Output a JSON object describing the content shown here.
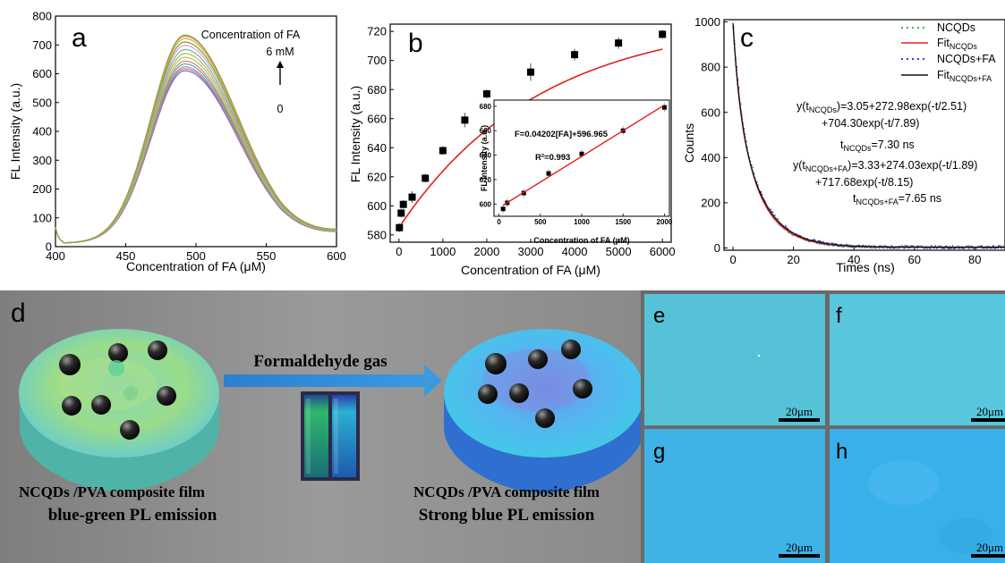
{
  "chart_data": [
    {
      "panel": "a",
      "type": "line",
      "xlabel": "Concentration of FA (μM)",
      "ylabel": "FL Intensity (a.u.)",
      "xlim": [
        400,
        600
      ],
      "ylim": [
        0,
        800
      ],
      "xticks": [
        400,
        450,
        500,
        550,
        600
      ],
      "yticks": [
        0,
        100,
        200,
        300,
        400,
        500,
        600,
        700,
        800
      ],
      "annotation": {
        "title": "Concentration of FA",
        "top": "6 mM",
        "bottom": "0"
      },
      "peak_x": 492,
      "series_peaks": [
        598,
        605,
        612,
        622,
        632,
        645,
        658,
        672,
        686,
        698,
        710,
        718,
        722
      ],
      "series_colors": [
        "#6b6bd6",
        "#b070b0",
        "#c08c60",
        "#4da6c8",
        "#e07a7a",
        "#9acd5a",
        "#d4a84a",
        "#5ab8b8",
        "#e0a0c0",
        "#7a9a3a",
        "#c8b040",
        "#e09a40",
        "#90a050"
      ]
    },
    {
      "panel": "b",
      "type": "scatter",
      "xlabel": "Concentration of FA (μM)",
      "ylabel": "FL Intensity (a.u.)",
      "xlim": [
        -200,
        6200
      ],
      "ylim": [
        575,
        725
      ],
      "xticks": [
        0,
        1000,
        2000,
        3000,
        4000,
        5000,
        6000
      ],
      "yticks": [
        580,
        600,
        620,
        640,
        660,
        680,
        700,
        720
      ],
      "x": [
        10,
        50,
        100,
        300,
        600,
        1000,
        1500,
        2000,
        3000,
        4000,
        5000,
        6000
      ],
      "y": [
        585,
        595,
        601,
        606,
        619,
        638,
        659,
        677,
        692,
        704,
        712,
        718
      ],
      "err": [
        3,
        3,
        3,
        4,
        3,
        3,
        5,
        3,
        6,
        4,
        4,
        3
      ],
      "fit_color": "#e02020",
      "inset": {
        "xlabel": "Concentration of FA (μM)",
        "ylabel": "FL Intensity (a.u.)",
        "xlim": [
          0,
          2000
        ],
        "ylim": [
          590,
          685
        ],
        "xticks": [
          0,
          500,
          1000,
          1500,
          2000
        ],
        "yticks": [
          600,
          620,
          640,
          660,
          680
        ],
        "x": [
          50,
          100,
          300,
          600,
          1000,
          1500,
          2000
        ],
        "y": [
          596,
          601,
          609,
          625,
          641,
          660,
          679
        ],
        "equation": "F=0.04202[FA]+596.965",
        "r2": "R²=0.993"
      }
    },
    {
      "panel": "c",
      "type": "line",
      "xlabel": "Times (ns)",
      "ylabel": "Counts",
      "xlim": [
        -3,
        90
      ],
      "ylim": [
        -10,
        1010
      ],
      "xticks": [
        0,
        20,
        40,
        60,
        80
      ],
      "yticks": [
        0,
        200,
        400,
        600,
        800,
        1000
      ],
      "legend": [
        {
          "label": "NCQDs",
          "color": "#4caf50",
          "style": "dotted"
        },
        {
          "label": "Fit",
          "sub": "NCQDs",
          "color": "#e02020",
          "style": "solid"
        },
        {
          "label": "NCQDs+FA",
          "color": "#3a3ad0",
          "style": "dotted"
        },
        {
          "label": "Fit",
          "sub": "NCQDs+FA",
          "color": "#111111",
          "style": "solid"
        }
      ],
      "legend_placement": "top-right",
      "equations": {
        "eq1_a": "y(t",
        "eq1_sub": "NCQDs",
        "eq1_b": ")=3.05+272.98exp(-t/2.51)",
        "eq1_line2": "+704.30exp(-t/7.89)",
        "t1_a": "t",
        "t1_sub": "NCQDs",
        "t1_b": "=7.30 ns",
        "eq2_a": "y(t",
        "eq2_sub": "NCQDs+FA",
        "eq2_b": ")=3.33+274.03exp(-t/1.89)",
        "eq2_line2": "+717.68exp(-t/8.15)",
        "t2_a": "t",
        "t2_sub": "NCQDs+FA",
        "t2_b": "=7.65 ns"
      },
      "decay1": {
        "a": 272.98,
        "tau1": 2.51,
        "b": 704.3,
        "tau2": 7.89,
        "c": 3.05
      },
      "decay2": {
        "a": 274.03,
        "tau1": 1.89,
        "b": 717.68,
        "tau2": 8.15,
        "c": 3.33
      }
    }
  ],
  "panel_d": {
    "label": "d",
    "arrow_label": "Formaldehyde gas",
    "left_caption_1": "NCQDs /PVA composite film",
    "left_caption_2": "blue-green PL emission",
    "right_caption_1": "NCQDs /PVA composite film",
    "right_caption_2": "Strong blue PL emission"
  },
  "micrographs": [
    {
      "label": "e",
      "scale": "20μm",
      "color": "#56c2d8"
    },
    {
      "label": "f",
      "scale": "20μm",
      "color": "#58c6dc"
    },
    {
      "label": "g",
      "scale": "20μm",
      "color": "#3fb2e6"
    },
    {
      "label": "h",
      "scale": "20μm",
      "color": "#3ab0ea"
    }
  ]
}
